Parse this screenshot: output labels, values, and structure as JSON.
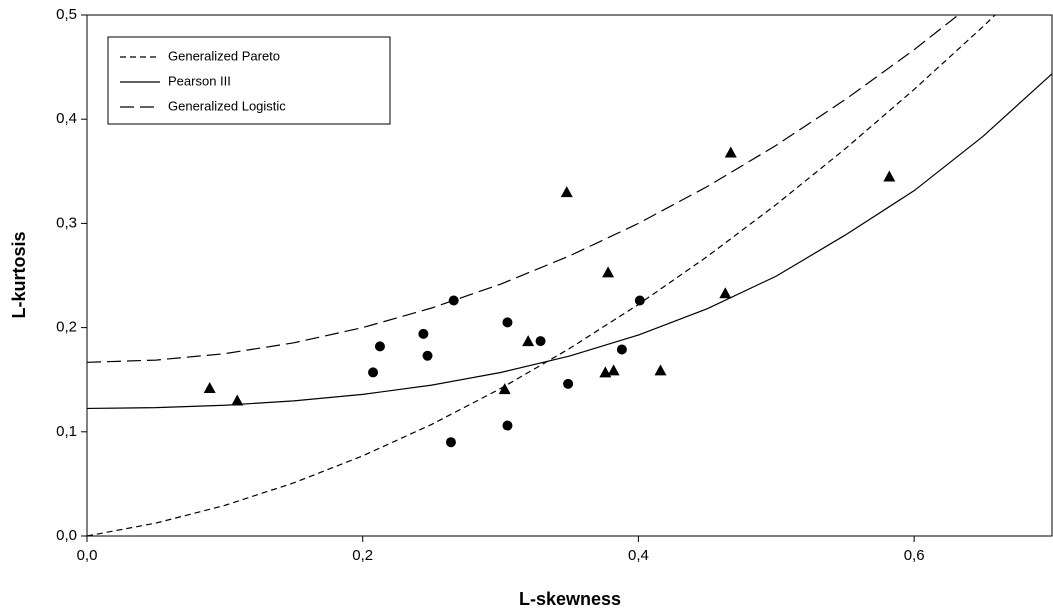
{
  "chart_data": {
    "type": "scatter",
    "xlabel": "L-skewness",
    "ylabel": "L-kurtosis",
    "xlim": [
      0,
      0.7
    ],
    "ylim": [
      0,
      0.5
    ],
    "xticks": [
      {
        "value": 0,
        "label": "0,0"
      },
      {
        "value": 0.2,
        "label": "0,2"
      },
      {
        "value": 0.4,
        "label": "0,4"
      },
      {
        "value": 0.6,
        "label": "0,6"
      }
    ],
    "yticks": [
      {
        "value": 0,
        "label": "0,0"
      },
      {
        "value": 0.1,
        "label": "0,1"
      },
      {
        "value": 0.2,
        "label": "0,2"
      },
      {
        "value": 0.3,
        "label": "0,3"
      },
      {
        "value": 0.4,
        "label": "0,4"
      },
      {
        "value": 0.5,
        "label": "0,5"
      }
    ],
    "legend": "top-left",
    "series": [
      {
        "name": "Generalized Pareto",
        "type": "line",
        "line_style": "short-dash",
        "color": "#000000",
        "x": [
          0,
          0.05,
          0.1,
          0.15,
          0.2,
          0.25,
          0.3,
          0.35,
          0.4,
          0.45,
          0.5,
          0.55,
          0.6,
          0.65,
          0.7
        ],
        "values": [
          0,
          0.0124,
          0.0294,
          0.051,
          0.0769,
          0.1071,
          0.1415,
          0.1799,
          0.2222,
          0.2683,
          0.3182,
          0.3716,
          0.4286,
          0.4889,
          0.5526
        ]
      },
      {
        "name": "Pearson III",
        "type": "line",
        "line_style": "solid",
        "color": "#000000",
        "x": [
          0,
          0.05,
          0.1,
          0.15,
          0.2,
          0.25,
          0.3,
          0.35,
          0.4,
          0.45,
          0.5,
          0.55,
          0.6,
          0.65,
          0.7
        ],
        "values": [
          0.1224,
          0.1232,
          0.1255,
          0.1297,
          0.1359,
          0.1448,
          0.1569,
          0.1727,
          0.1929,
          0.2182,
          0.2494,
          0.2888,
          0.3314,
          0.3836,
          0.4435
        ]
      },
      {
        "name": "Generalized Logistic",
        "type": "line",
        "line_style": "long-dash",
        "color": "#000000",
        "x": [
          0,
          0.05,
          0.1,
          0.15,
          0.2,
          0.25,
          0.3,
          0.35,
          0.4,
          0.45,
          0.5,
          0.55,
          0.6,
          0.65,
          0.7
        ],
        "values": [
          0.1667,
          0.1688,
          0.175,
          0.1854,
          0.2,
          0.2188,
          0.2417,
          0.2688,
          0.3,
          0.3354,
          0.375,
          0.4188,
          0.4667,
          0.5188,
          0.575
        ]
      },
      {
        "type": "scatter",
        "marker": "circle",
        "color": "#000000",
        "x": [
          0.2075,
          0.2125,
          0.244,
          0.247,
          0.266,
          0.264,
          0.305,
          0.305,
          0.329,
          0.349,
          0.388,
          0.401
        ],
        "values": [
          0.157,
          0.182,
          0.194,
          0.173,
          0.226,
          0.09,
          0.205,
          0.106,
          0.187,
          0.146,
          0.179,
          0.226
        ]
      },
      {
        "type": "scatter",
        "marker": "triangle",
        "color": "#000000",
        "x": [
          0.089,
          0.109,
          0.303,
          0.32,
          0.348,
          0.378,
          0.376,
          0.382,
          0.416,
          0.463,
          0.467,
          0.582
        ],
        "values": [
          0.142,
          0.13,
          0.141,
          0.187,
          0.33,
          0.253,
          0.157,
          0.159,
          0.159,
          0.233,
          0.368,
          0.345
        ]
      }
    ]
  }
}
